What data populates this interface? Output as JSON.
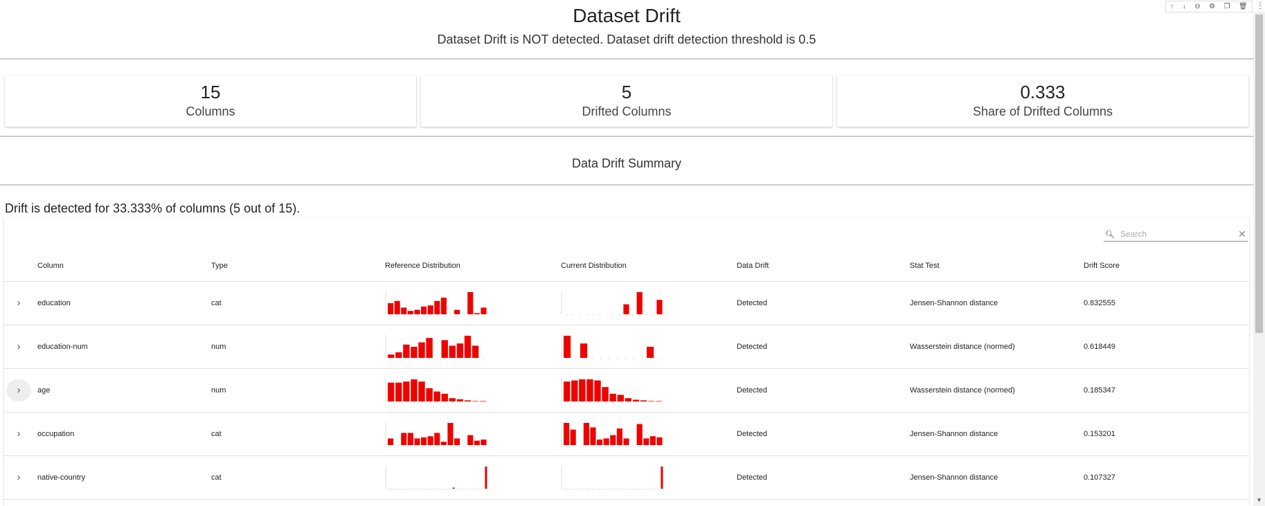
{
  "toolbar": {
    "icons": [
      "arrow-up-icon",
      "arrow-down-icon",
      "link-icon",
      "gear-icon",
      "copy-icon",
      "trash-icon"
    ],
    "glyphs": [
      "↑",
      "↓",
      "⊖",
      "⚙",
      "❐",
      "🗑"
    ],
    "more": "⋮"
  },
  "header": {
    "title": "Dataset Drift",
    "subtitle": "Dataset Drift is NOT detected. Dataset drift detection threshold is 0.5"
  },
  "cards": [
    {
      "value": "15",
      "label": "Columns"
    },
    {
      "value": "5",
      "label": "Drifted Columns"
    },
    {
      "value": "0.333",
      "label": "Share of Drifted Columns"
    }
  ],
  "summary": {
    "title": "Data Drift Summary",
    "text": "Drift is detected for 33.333% of columns (5 out of 15)."
  },
  "search": {
    "placeholder": "Search"
  },
  "table": {
    "headers": [
      "Column",
      "Type",
      "Reference Distribution",
      "Current Distribution",
      "Data Drift",
      "Stat Test",
      "Drift Score"
    ],
    "rows": [
      {
        "column": "education",
        "type": "cat",
        "drift": "Detected",
        "test": "Jensen-Shannon distance",
        "score": "0.832555",
        "ref": [
          0.5,
          0.6,
          0.3,
          0.15,
          0.2,
          0.35,
          0.4,
          0.6,
          0.75,
          0,
          0.2,
          0,
          1,
          0.05,
          0.3
        ],
        "cur": [
          0,
          0,
          0,
          0,
          0,
          0,
          0,
          0,
          0,
          0.45,
          0,
          1,
          0,
          0,
          0.65
        ]
      },
      {
        "column": "education-num",
        "type": "num",
        "drift": "Detected",
        "test": "Wasserstein distance (normed)",
        "score": "0.618449",
        "ref": [
          0.15,
          0.25,
          0.6,
          0.5,
          0.7,
          0.9,
          0,
          0.8,
          0.55,
          0.65,
          1,
          0.55,
          0
        ],
        "cur": [
          1,
          0,
          0.65,
          0,
          0,
          0,
          0,
          0,
          0,
          0,
          0.5,
          0
        ]
      },
      {
        "column": "age",
        "type": "num",
        "drift": "Detected",
        "test": "Wasserstein distance (normed)",
        "score": "0.185347",
        "ref": [
          0.85,
          0.85,
          0.9,
          1,
          0.9,
          0.6,
          0.45,
          0.35,
          0.15,
          0.1,
          0.05,
          0.02,
          0.02
        ],
        "cur": [
          0.9,
          0.95,
          1,
          1,
          0.95,
          0.65,
          0.35,
          0.3,
          0.15,
          0.08,
          0.05,
          0.02,
          0.02
        ]
      },
      {
        "column": "occupation",
        "type": "cat",
        "drift": "Detected",
        "test": "Jensen-Shannon distance",
        "score": "0.153201",
        "ref": [
          0.3,
          0,
          0.55,
          0.55,
          0.3,
          0.35,
          0.4,
          0.55,
          0.15,
          1,
          0.3,
          0,
          0.45,
          0.2,
          0.25
        ],
        "cur": [
          1,
          0.7,
          0,
          1,
          0.8,
          0.25,
          0.3,
          0.45,
          0.75,
          0.3,
          0,
          0.95,
          0.3,
          0.4,
          0.35
        ]
      },
      {
        "column": "native-country",
        "type": "cat",
        "drift": "Detected",
        "test": "Jensen-Shannon distance",
        "score": "0.107327",
        "ref": [
          0,
          0,
          0,
          0,
          0,
          0,
          0,
          0,
          0,
          0,
          0,
          0,
          0,
          0,
          0,
          0,
          0,
          0,
          0,
          0,
          0,
          0,
          0,
          0,
          0,
          0,
          0.05,
          0,
          0,
          0,
          0,
          0,
          0,
          0,
          0,
          0,
          0,
          0,
          0,
          1
        ],
        "cur": [
          0,
          0,
          0,
          0,
          0,
          0,
          0,
          0,
          0,
          0,
          0,
          0,
          0,
          0,
          0,
          0,
          0,
          0,
          0,
          0,
          0,
          0,
          0,
          0,
          0,
          0,
          0,
          0,
          0,
          0,
          0,
          0,
          0,
          0,
          0,
          0,
          0,
          0,
          0,
          1
        ]
      }
    ]
  },
  "colors": {
    "bar": "#ed0400",
    "axis": "#bbb"
  }
}
